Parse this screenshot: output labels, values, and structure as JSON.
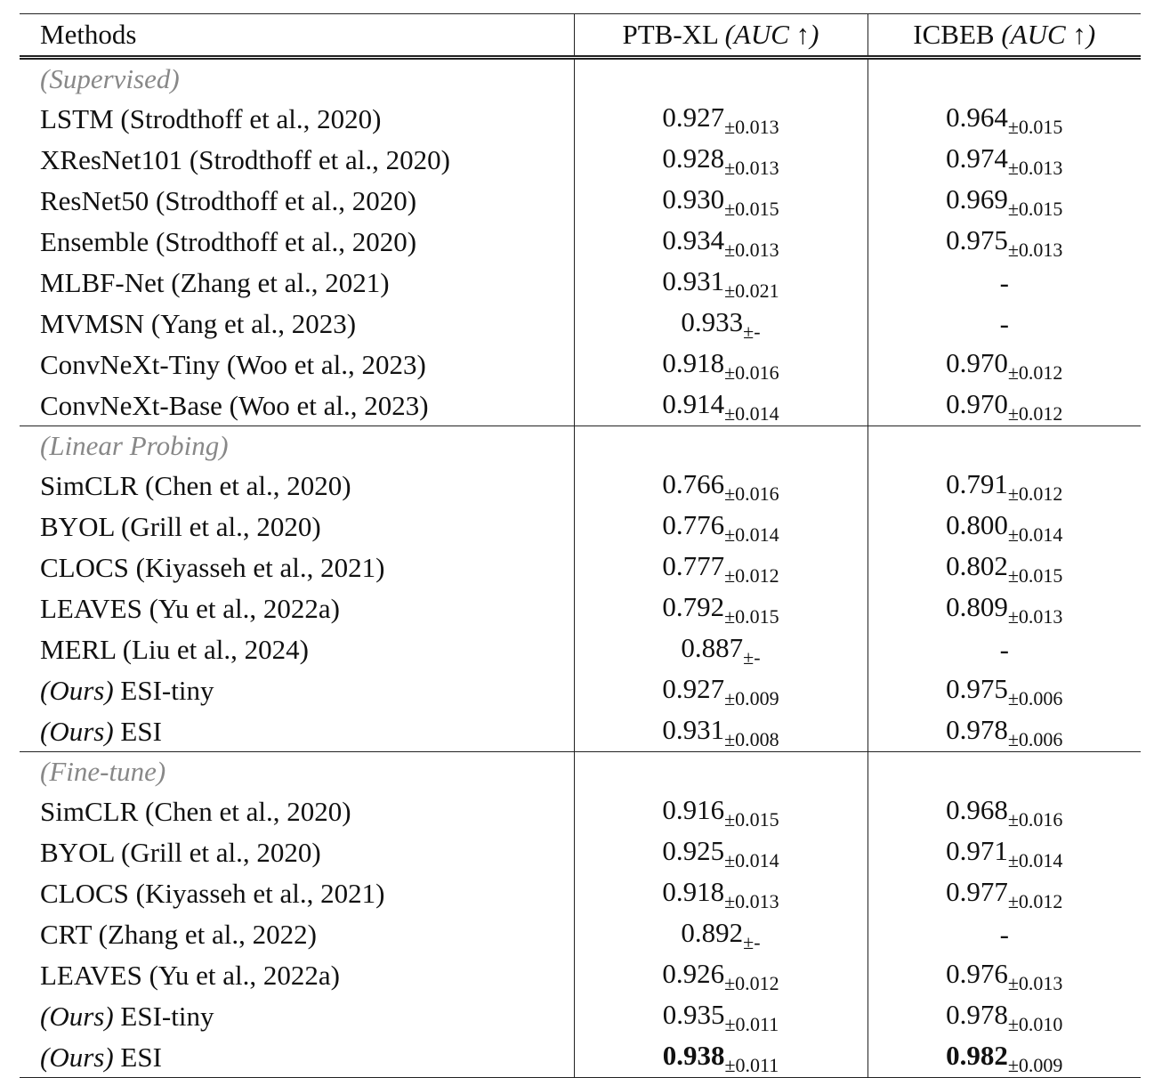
{
  "header": {
    "columns": [
      {
        "name": "Methods"
      },
      {
        "name": "PTB-XL",
        "metric": "(AUC ↑)"
      },
      {
        "name": "ICBEB",
        "metric": "(AUC ↑)"
      }
    ]
  },
  "sections": [
    {
      "label": "(Supervised)",
      "rows": [
        {
          "method": "LSTM (Strodthoff et al., 2020)",
          "cells": [
            {
              "mean": "0.927",
              "std": "±0.013"
            },
            {
              "mean": "0.964",
              "std": "±0.015"
            }
          ]
        },
        {
          "method": "XResNet101 (Strodthoff et al., 2020)",
          "cells": [
            {
              "mean": "0.928",
              "std": "±0.013"
            },
            {
              "mean": "0.974",
              "std": "±0.013"
            }
          ]
        },
        {
          "method": "ResNet50 (Strodthoff et al., 2020)",
          "cells": [
            {
              "mean": "0.930",
              "std": "±0.015"
            },
            {
              "mean": "0.969",
              "std": "±0.015"
            }
          ]
        },
        {
          "method": "Ensemble (Strodthoff et al., 2020)",
          "cells": [
            {
              "mean": "0.934",
              "std": "±0.013"
            },
            {
              "mean": "0.975",
              "std": "±0.013"
            }
          ]
        },
        {
          "method": "MLBF-Net (Zhang et al., 2021)",
          "cells": [
            {
              "mean": "0.931",
              "std": "±0.021"
            },
            {
              "mean": "-"
            }
          ]
        },
        {
          "method": "MVMSN (Yang et al., 2023)",
          "cells": [
            {
              "mean": "0.933",
              "std": "±-"
            },
            {
              "mean": "-"
            }
          ]
        },
        {
          "method": "ConvNeXt-Tiny (Woo et al., 2023)",
          "cells": [
            {
              "mean": "0.918",
              "std": "±0.016"
            },
            {
              "mean": "0.970",
              "std": "±0.012"
            }
          ]
        },
        {
          "method": "ConvNeXt-Base (Woo et al., 2023)",
          "cells": [
            {
              "mean": "0.914",
              "std": "±0.014"
            },
            {
              "mean": "0.970",
              "std": "±0.012"
            }
          ]
        }
      ]
    },
    {
      "label": "(Linear Probing)",
      "rows": [
        {
          "method": "SimCLR (Chen et al., 2020)",
          "cells": [
            {
              "mean": "0.766",
              "std": "±0.016"
            },
            {
              "mean": "0.791",
              "std": "±0.012"
            }
          ]
        },
        {
          "method": "BYOL (Grill et al., 2020)",
          "cells": [
            {
              "mean": "0.776",
              "std": "±0.014"
            },
            {
              "mean": "0.800",
              "std": "±0.014"
            }
          ]
        },
        {
          "method": "CLOCS (Kiyasseh et al., 2021)",
          "cells": [
            {
              "mean": "0.777",
              "std": "±0.012"
            },
            {
              "mean": "0.802",
              "std": "±0.015"
            }
          ]
        },
        {
          "method": "LEAVES (Yu et al., 2022a)",
          "cells": [
            {
              "mean": "0.792",
              "std": "±0.015"
            },
            {
              "mean": "0.809",
              "std": "±0.013"
            }
          ]
        },
        {
          "method": "MERL (Liu et al., 2024)",
          "cells": [
            {
              "mean": "0.887",
              "std": "±-"
            },
            {
              "mean": "-"
            }
          ]
        },
        {
          "tag": "(Ours)",
          "method": "ESI-tiny",
          "cells": [
            {
              "mean": "0.927",
              "std": "±0.009"
            },
            {
              "mean": "0.975",
              "std": "±0.006"
            }
          ]
        },
        {
          "tag": "(Ours)",
          "method": "ESI",
          "cells": [
            {
              "mean": "0.931",
              "std": "±0.008"
            },
            {
              "mean": "0.978",
              "std": "±0.006"
            }
          ]
        }
      ]
    },
    {
      "label": "(Fine-tune)",
      "rows": [
        {
          "method": "SimCLR (Chen et al., 2020)",
          "cells": [
            {
              "mean": "0.916",
              "std": "±0.015"
            },
            {
              "mean": "0.968",
              "std": "±0.016"
            }
          ]
        },
        {
          "method": "BYOL (Grill et al., 2020)",
          "cells": [
            {
              "mean": "0.925",
              "std": "±0.014"
            },
            {
              "mean": "0.971",
              "std": "±0.014"
            }
          ]
        },
        {
          "method": "CLOCS (Kiyasseh et al., 2021)",
          "cells": [
            {
              "mean": "0.918",
              "std": "±0.013"
            },
            {
              "mean": "0.977",
              "std": "±0.012"
            }
          ]
        },
        {
          "method": "CRT (Zhang et al., 2022)",
          "cells": [
            {
              "mean": "0.892",
              "std": "±-"
            },
            {
              "mean": "-"
            }
          ]
        },
        {
          "method": "LEAVES (Yu et al., 2022a)",
          "cells": [
            {
              "mean": "0.926",
              "std": "±0.012"
            },
            {
              "mean": "0.976",
              "std": "±0.013"
            }
          ]
        },
        {
          "tag": "(Ours)",
          "method": "ESI-tiny",
          "cells": [
            {
              "mean": "0.935",
              "std": "±0.011"
            },
            {
              "mean": "0.978",
              "std": "±0.010"
            }
          ]
        },
        {
          "tag": "(Ours)",
          "method": "ESI",
          "cells": [
            {
              "mean": "0.938",
              "std": "±0.011",
              "bold": true
            },
            {
              "mean": "0.982",
              "std": "±0.009",
              "bold": true
            }
          ]
        }
      ]
    }
  ]
}
